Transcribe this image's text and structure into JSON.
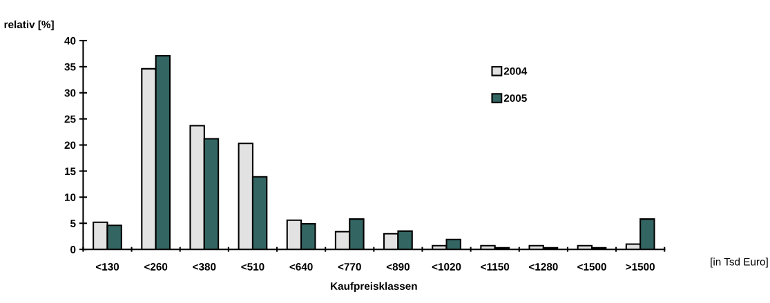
{
  "chart_data": {
    "type": "bar",
    "ylabel": "relativ [%]",
    "xlabel": "Kaufpreisklassen",
    "annotations": [
      "[in Tsd Euro]"
    ],
    "categories": [
      "<130",
      "<260",
      "<380",
      "<510",
      "<640",
      "<770",
      "<890",
      "<1020",
      "<1150",
      "<1280",
      "<1500",
      ">1500"
    ],
    "series": [
      {
        "name": "2004",
        "color": "#e2e2e2",
        "values": [
          5.2,
          34.6,
          23.7,
          20.3,
          5.6,
          3.4,
          3.0,
          0.7,
          0.7,
          0.7,
          0.7,
          1.0
        ]
      },
      {
        "name": "2005",
        "color": "#336663",
        "values": [
          4.6,
          37.1,
          21.2,
          13.9,
          4.9,
          5.8,
          3.5,
          1.9,
          0.3,
          0.3,
          0.3,
          5.8
        ]
      }
    ],
    "ylim": [
      0,
      40
    ],
    "yticks": [
      0,
      5,
      10,
      15,
      20,
      25,
      30,
      35,
      40
    ],
    "grid": false,
    "legend": "top right"
  }
}
